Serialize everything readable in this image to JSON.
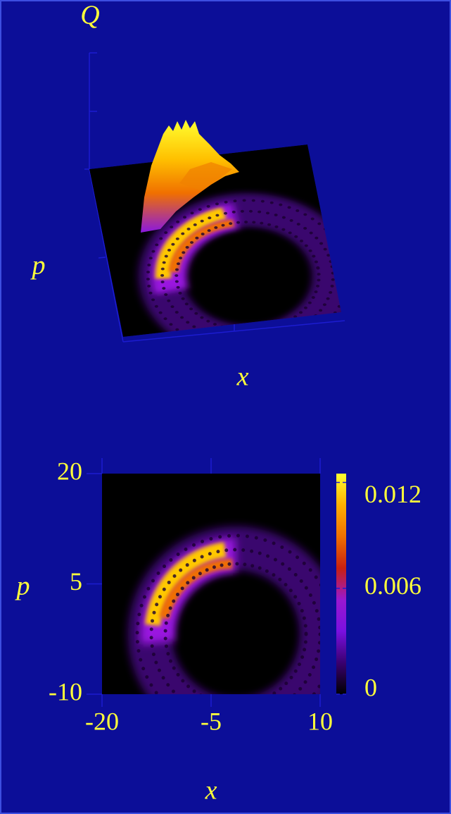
{
  "chart_data": [
    {
      "type": "surface",
      "zlabel": "Q",
      "ylabel": "p",
      "xlabel": "x"
    },
    {
      "type": "heatmap",
      "xlabel": "x",
      "ylabel": "p",
      "xlim": [
        -20,
        10
      ],
      "xticks": [
        -20,
        -5,
        10
      ],
      "ylim": [
        -10,
        20
      ],
      "yticks": [
        -10,
        5,
        20
      ],
      "colorbar": {
        "clim": [
          0,
          0.0125
        ],
        "ticks": [
          0,
          0.006,
          0.012
        ],
        "colors": [
          "#000000",
          "#3a0070",
          "#7a10e0",
          "#9a18d0",
          "#c82010",
          "#f07000",
          "#ffb000",
          "#ffff30"
        ]
      }
    }
  ]
}
